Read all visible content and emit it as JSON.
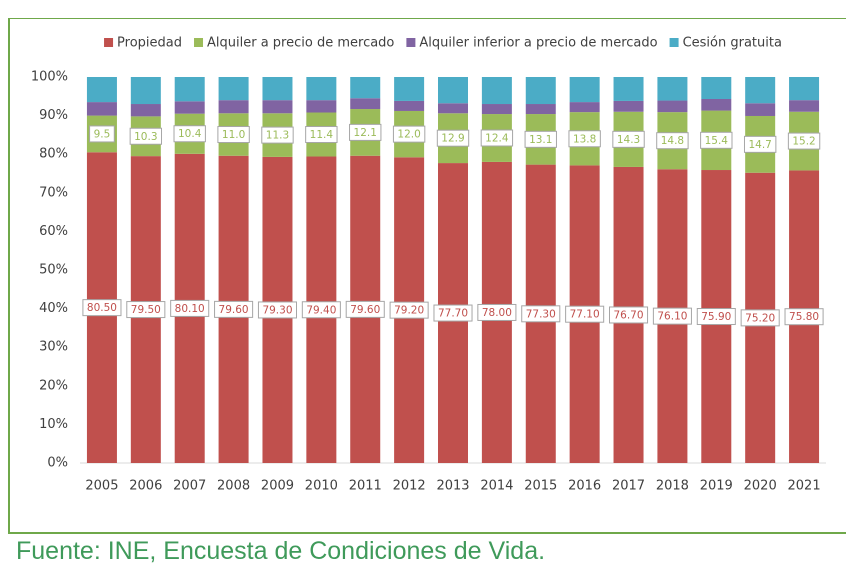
{
  "chart_data": {
    "type": "stacked-bar",
    "source": "Fuente: INE, Encuesta de Condiciones de Vida.",
    "categories": [
      "2005",
      "2006",
      "2007",
      "2008",
      "2009",
      "2010",
      "2011",
      "2012",
      "2013",
      "2014",
      "2015",
      "2016",
      "2017",
      "2018",
      "2019",
      "2020",
      "2021"
    ],
    "series": [
      {
        "name": "Propiedad",
        "color": "#c0504d",
        "values": [
          80.5,
          79.5,
          80.1,
          79.6,
          79.3,
          79.4,
          79.6,
          79.2,
          77.7,
          78.0,
          77.3,
          77.1,
          76.7,
          76.1,
          75.9,
          75.2,
          75.8
        ],
        "value_labels": [
          "80.50",
          "79.50",
          "80.10",
          "79.60",
          "79.30",
          "79.40",
          "79.60",
          "79.20",
          "77.70",
          "78.00",
          "77.30",
          "77.10",
          "76.70",
          "76.10",
          "75.90",
          "75.20",
          "75.80"
        ]
      },
      {
        "name": "Alquiler a precio de mercado",
        "color": "#9bbb59",
        "values": [
          9.5,
          10.3,
          10.4,
          11.0,
          11.3,
          11.4,
          12.1,
          12.0,
          12.9,
          12.4,
          13.1,
          13.8,
          14.3,
          14.8,
          15.4,
          14.7,
          15.2
        ],
        "value_labels": [
          "9.5",
          "10.3",
          "10.4",
          "11.0",
          "11.3",
          "11.4",
          "12.1",
          "12.0",
          "12.9",
          "12.4",
          "13.1",
          "13.8",
          "14.3",
          "14.8",
          "15.4",
          "14.7",
          "15.2"
        ]
      },
      {
        "name": "Alquiler inferior a precio de mercado",
        "color": "#8064a2",
        "values": [
          3.5,
          3.2,
          3.2,
          3.4,
          3.4,
          3.2,
          2.8,
          2.6,
          2.6,
          2.6,
          2.6,
          2.6,
          2.8,
          3.0,
          3.0,
          3.3,
          3.0
        ]
      },
      {
        "name": "Cesión gratuita",
        "color": "#4bacc6",
        "values": [
          6.5,
          7.0,
          6.3,
          6.0,
          6.0,
          6.0,
          5.5,
          6.2,
          6.8,
          7.0,
          7.0,
          6.5,
          6.2,
          6.1,
          5.7,
          6.8,
          6.0
        ]
      }
    ],
    "ylim": [
      0,
      100
    ],
    "yticks": [
      {
        "value": 0,
        "label": "0%"
      },
      {
        "value": 10,
        "label": "10%"
      },
      {
        "value": 20,
        "label": "20%"
      },
      {
        "value": 30,
        "label": "30%"
      },
      {
        "value": 40,
        "label": "40%"
      },
      {
        "value": 50,
        "label": "50%"
      },
      {
        "value": 60,
        "label": "60%"
      },
      {
        "value": 70,
        "label": "70%"
      },
      {
        "value": 80,
        "label": "80%"
      },
      {
        "value": 90,
        "label": "90%"
      },
      {
        "value": 100,
        "label": "100%"
      }
    ],
    "grid": false,
    "legend": "top"
  }
}
